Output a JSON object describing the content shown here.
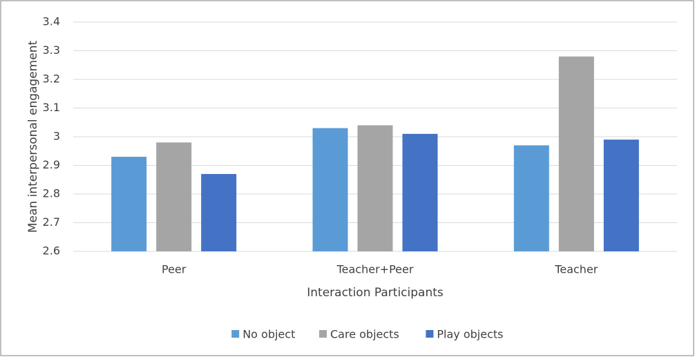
{
  "chart_data": {
    "type": "bar",
    "y_label": "Mean interpersonal engagement",
    "x_label": "Interaction Participants",
    "categories": [
      "Peer",
      "Teacher+Peer",
      "Teacher"
    ],
    "series": [
      {
        "name": "No object",
        "color": "#5b9bd5",
        "values": [
          2.93,
          3.03,
          2.97
        ]
      },
      {
        "name": "Care objects",
        "color": "#a5a5a5",
        "values": [
          2.98,
          3.04,
          3.28
        ]
      },
      {
        "name": "Play objects",
        "color": "#4472c4",
        "values": [
          2.87,
          3.01,
          2.99
        ]
      }
    ],
    "ylim": [
      2.6,
      3.4
    ],
    "yticks": [
      2.6,
      2.7,
      2.8,
      2.9,
      3,
      3.1,
      3.2,
      3.3,
      3.4
    ],
    "grid": true
  }
}
